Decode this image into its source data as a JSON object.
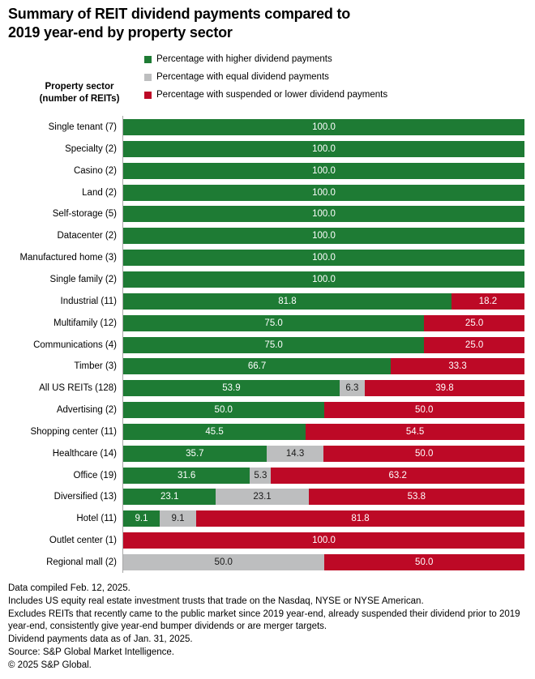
{
  "title": "Summary of REIT dividend payments compared to 2019 year-end by property sector",
  "axis_header": {
    "line1": "Property sector",
    "line2": "(number of REITs)"
  },
  "legend": [
    {
      "label": "Percentage with higher dividend payments",
      "color": "#1E7B34"
    },
    {
      "label": "Percentage with equal dividend payments",
      "color": "#BDBEBF"
    },
    {
      "label": "Percentage with suspended or lower dividend payments",
      "color": "#BD0926"
    }
  ],
  "chart_data": {
    "type": "bar",
    "orientation": "horizontal",
    "stacked": true,
    "xlim": [
      0,
      100
    ],
    "grid": false,
    "legend_position": "top",
    "value_labels": "inside-center, one decimal",
    "categories": [
      "Single tenant (7)",
      "Specialty (2)",
      "Casino (2)",
      "Land (2)",
      "Self-storage (5)",
      "Datacenter (2)",
      "Manufactured home (3)",
      "Single family (2)",
      "Industrial (11)",
      "Multifamily (12)",
      "Communications (4)",
      "Timber (3)",
      "All US REITs (128)",
      "Advertising (2)",
      "Shopping center (11)",
      "Healthcare (14)",
      "Office (19)",
      "Diversified (13)",
      "Hotel (11)",
      "Outlet center (1)",
      "Regional mall (2)"
    ],
    "series": [
      {
        "name": "Percentage with higher dividend payments",
        "color": "#1E7B34",
        "label_color": "#ffffff",
        "values": [
          100.0,
          100.0,
          100.0,
          100.0,
          100.0,
          100.0,
          100.0,
          100.0,
          81.8,
          75.0,
          75.0,
          66.7,
          53.9,
          50.0,
          45.5,
          35.7,
          31.6,
          23.1,
          9.1,
          0,
          0
        ]
      },
      {
        "name": "Percentage with equal dividend payments",
        "color": "#BDBEBF",
        "label_color": "#1a1a1a",
        "values": [
          0,
          0,
          0,
          0,
          0,
          0,
          0,
          0,
          0,
          0,
          0,
          0,
          6.3,
          0,
          0,
          14.3,
          5.3,
          23.1,
          9.1,
          0,
          50.0
        ]
      },
      {
        "name": "Percentage with suspended or lower dividend payments",
        "color": "#BD0926",
        "label_color": "#ffffff",
        "values": [
          0,
          0,
          0,
          0,
          0,
          0,
          0,
          0,
          18.2,
          25.0,
          25.0,
          33.3,
          39.8,
          50.0,
          54.5,
          50.0,
          63.2,
          53.8,
          81.8,
          100.0,
          50.0
        ]
      }
    ]
  },
  "footnotes": [
    "Data compiled Feb. 12, 2025.",
    "Includes US equity real estate investment trusts that trade on the Nasdaq, NYSE or NYSE American.",
    "Excludes REITs that recently came to the public market since 2019 year-end, already suspended their dividend prior to 2019 year-end, consistently give year-end bumper dividends or are merger targets.",
    "Dividend payments data as of Jan. 31, 2025.",
    "Source: S&P Global Market Intelligence.",
    "© 2025 S&P Global."
  ]
}
